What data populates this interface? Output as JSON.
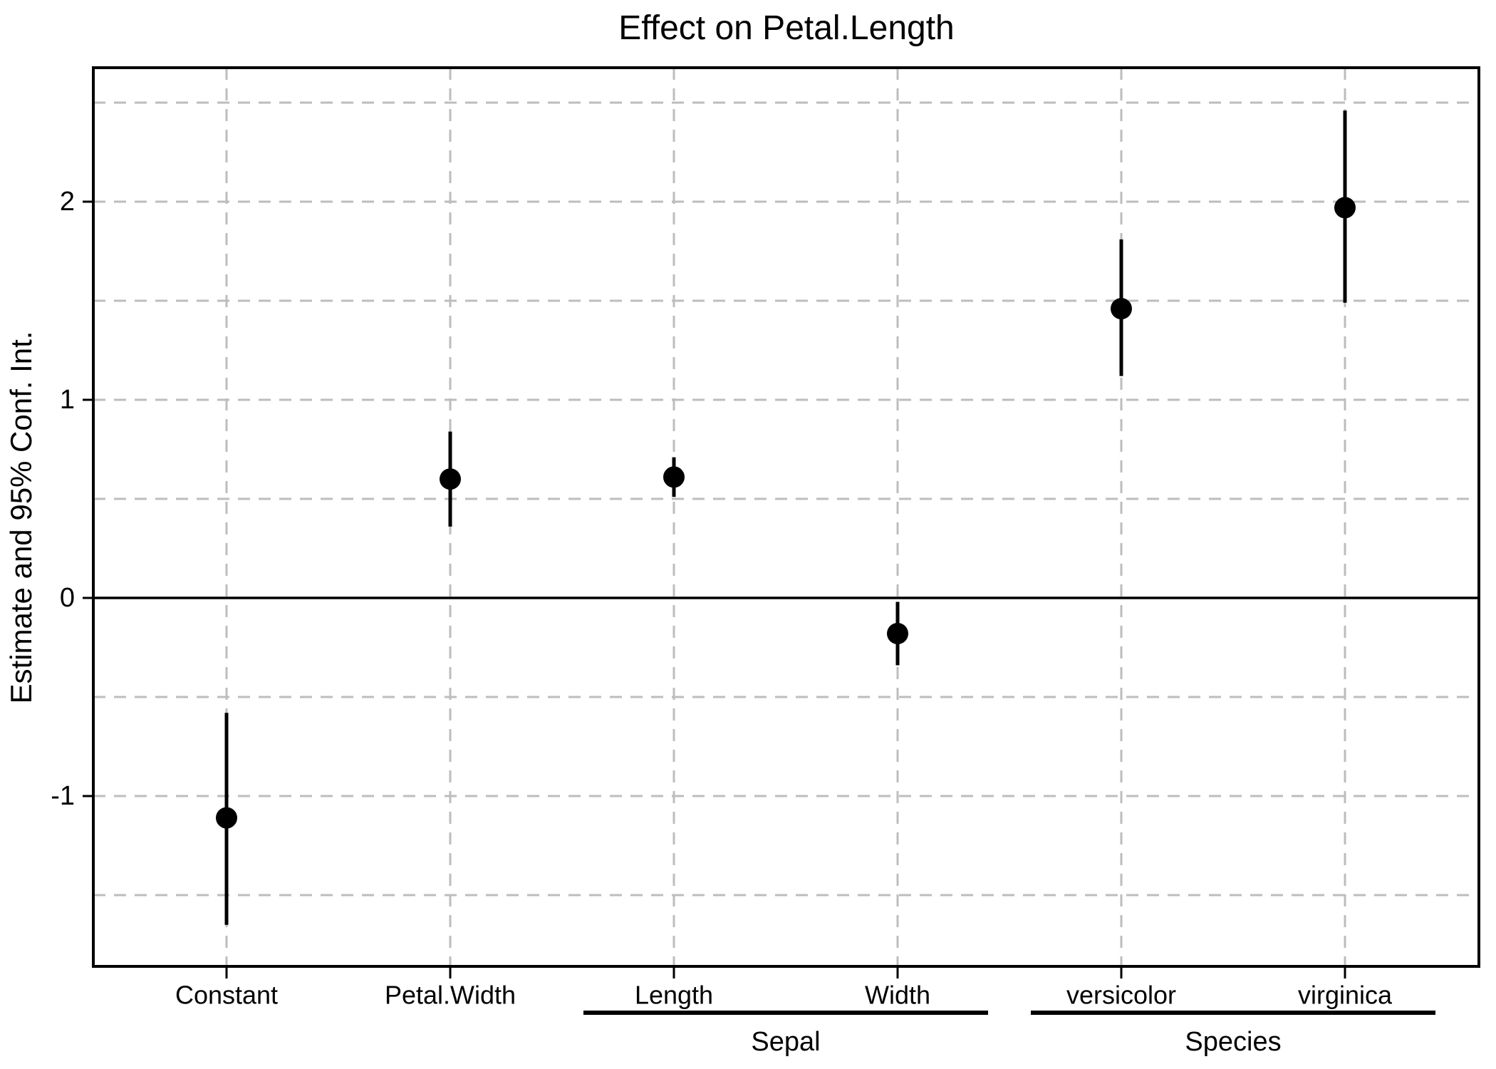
{
  "chart_data": {
    "type": "scatter",
    "subtype": "coefficient-pointrange",
    "title": "Effect on Petal.Length",
    "xlabel": "",
    "ylabel": "Estimate and 95% Conf. Int.",
    "ci_level": "95%",
    "categories": [
      "Constant",
      "Petal.Width",
      "Length",
      "Width",
      "versicolor",
      "virginica"
    ],
    "category_groups": [
      {
        "label": "Sepal",
        "from": "Length",
        "to": "Width"
      },
      {
        "label": "Species",
        "from": "versicolor",
        "to": "virginica"
      }
    ],
    "series": [
      {
        "name": "Estimate",
        "values": [
          -1.11,
          0.6,
          0.61,
          -0.18,
          1.46,
          1.97
        ]
      }
    ],
    "ci_low": [
      -1.65,
      0.36,
      0.51,
      -0.34,
      1.12,
      1.49
    ],
    "ci_high": [
      -0.58,
      0.84,
      0.71,
      -0.02,
      1.81,
      2.46
    ],
    "y_ticks": [
      -1,
      0,
      1,
      2
    ],
    "y_gridlines": [
      -1.5,
      -1,
      -0.5,
      0.5,
      1,
      1.5,
      2,
      2.5
    ],
    "ylim": [
      -1.86,
      2.68
    ],
    "zero_line": true,
    "grid_on": true,
    "legend": "none",
    "colors": {
      "point": "#000000",
      "error_bar": "#000000",
      "grid": "#bdbdbd",
      "axis": "#000000",
      "background": "#ffffff",
      "text": "#000000"
    }
  }
}
